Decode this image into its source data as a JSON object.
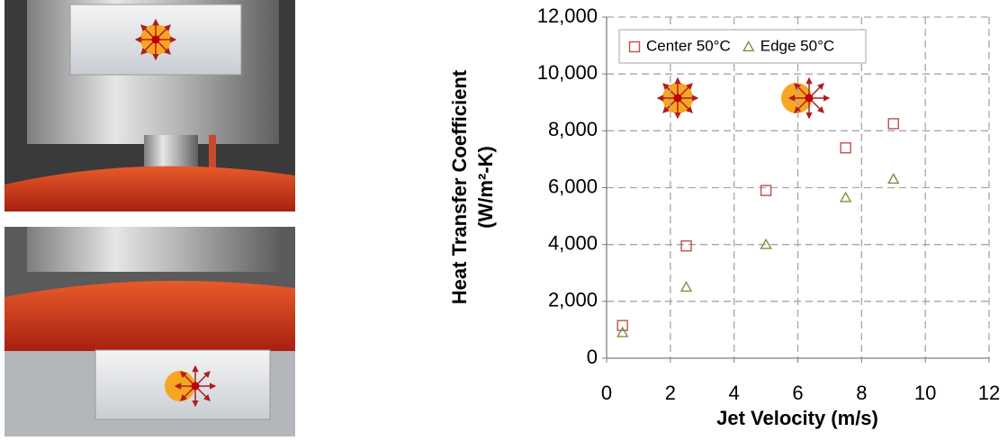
{
  "chart_data": {
    "type": "scatter",
    "xlabel": "Jet Velocity (m/s)",
    "ylabel": [
      "Heat Transfer Coefficient",
      "(W/m²-K)"
    ],
    "xlim": [
      0,
      12
    ],
    "xticks": [
      0,
      2,
      4,
      6,
      8,
      10,
      12
    ],
    "ylim": [
      0,
      12000
    ],
    "yticks": [
      0,
      {
        "value": 2000,
        "label": "2,000"
      },
      {
        "value": 4000,
        "label": "4,000"
      },
      {
        "value": 6000,
        "label": "6,000"
      },
      {
        "value": 8000,
        "label": "8,000"
      },
      {
        "value": 10000,
        "label": "10,000"
      },
      {
        "value": 12000,
        "label": "12,000"
      }
    ],
    "grid": true,
    "legend": "top-left",
    "series": [
      {
        "name": "Center 50°C",
        "marker": "square",
        "color": "#c0504d",
        "x": [
          0.5,
          2.5,
          5,
          7.5,
          9
        ],
        "values": [
          1150,
          3950,
          5900,
          7400,
          8250
        ]
      },
      {
        "name": "Edge 50°C",
        "marker": "triangle",
        "color": "#77933c",
        "x": [
          0.5,
          2.5,
          5,
          7.5,
          9
        ],
        "values": [
          900,
          2500,
          4000,
          5650,
          6300
        ]
      }
    ]
  }
}
